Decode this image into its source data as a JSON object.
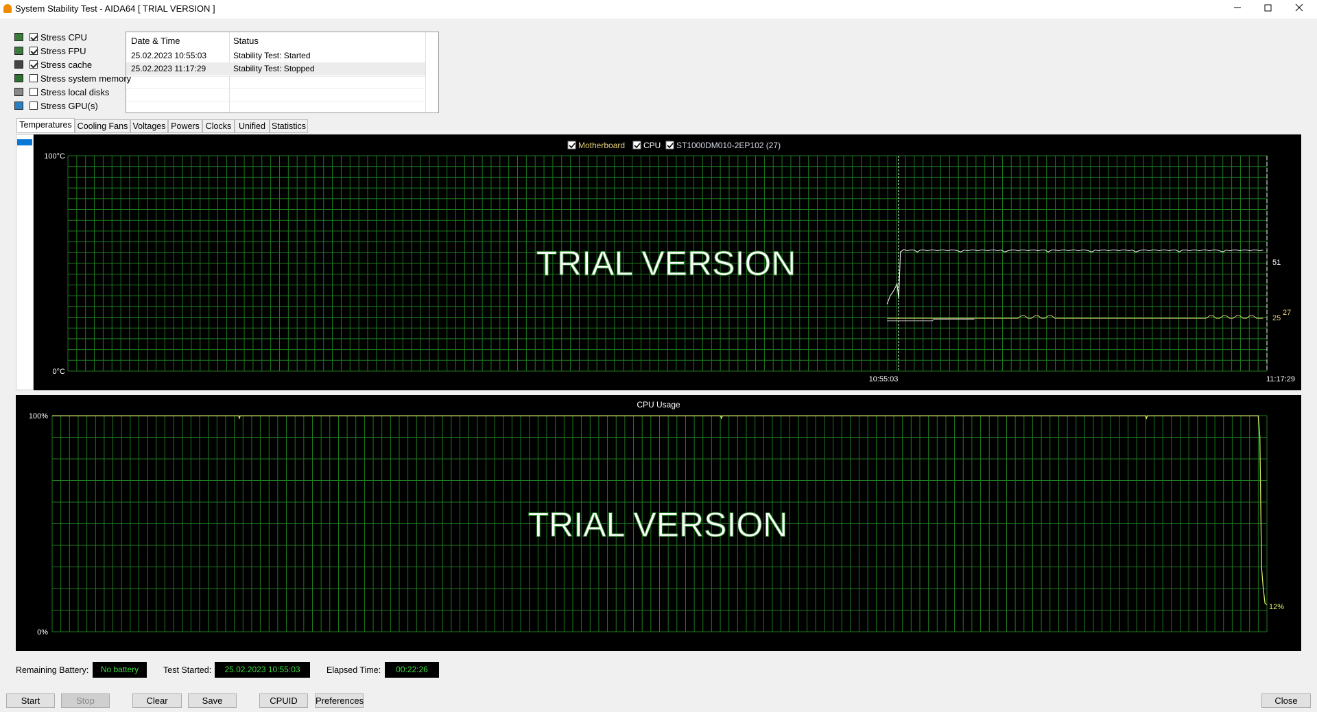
{
  "window": {
    "title": "System Stability Test - AIDA64  [ TRIAL VERSION ]"
  },
  "stress_options": [
    {
      "label": "Stress CPU",
      "checked": true
    },
    {
      "label": "Stress FPU",
      "checked": true
    },
    {
      "label": "Stress cache",
      "checked": true
    },
    {
      "label": "Stress system memory",
      "checked": false
    },
    {
      "label": "Stress local disks",
      "checked": false
    },
    {
      "label": "Stress GPU(s)",
      "checked": false
    }
  ],
  "log_table": {
    "columns": [
      "Date & Time",
      "Status"
    ],
    "rows": [
      [
        "25.02.2023 10:55:03",
        "Stability Test: Started"
      ],
      [
        "25.02.2023 11:17:29",
        "Stability Test: Stopped"
      ]
    ]
  },
  "tabs": [
    "Temperatures",
    "Cooling Fans",
    "Voltages",
    "Powers",
    "Clocks",
    "Unified",
    "Statistics"
  ],
  "active_tab": 0,
  "temperature_graph": {
    "legend": [
      {
        "label": "Motherboard",
        "checked": true,
        "color": "#e8d27a"
      },
      {
        "label": "CPU",
        "checked": true,
        "color": "#ffffff"
      },
      {
        "label": "ST1000DM010-2EP102 (27)",
        "checked": true,
        "color": "#d8dce8"
      }
    ],
    "y_max_label": "100°C",
    "y_min_label": "0°C",
    "x_labels": [
      "10:55:03",
      "11:17:29"
    ],
    "value_labels": [
      "51",
      "25",
      "27"
    ],
    "watermark": "TRIAL VERSION"
  },
  "cpu_graph": {
    "title": "CPU Usage",
    "y_max_label": "100%",
    "y_min_label": "0%",
    "value_label": "12%",
    "watermark": "TRIAL VERSION"
  },
  "status": [
    {
      "label": "Remaining Battery:",
      "value": "No battery"
    },
    {
      "label": "Test Started:",
      "value": "25.02.2023 10:55:03"
    },
    {
      "label": "Elapsed Time:",
      "value": "00:22:26"
    }
  ],
  "buttons": [
    {
      "label": "Start",
      "enabled": true
    },
    {
      "label": "Stop",
      "enabled": false
    },
    {
      "label": "Clear",
      "enabled": true
    },
    {
      "label": "Save",
      "enabled": true
    },
    {
      "label": "CPUID",
      "enabled": true
    },
    {
      "label": "Preferences",
      "enabled": true
    },
    {
      "label": "Close",
      "enabled": true
    }
  ]
}
